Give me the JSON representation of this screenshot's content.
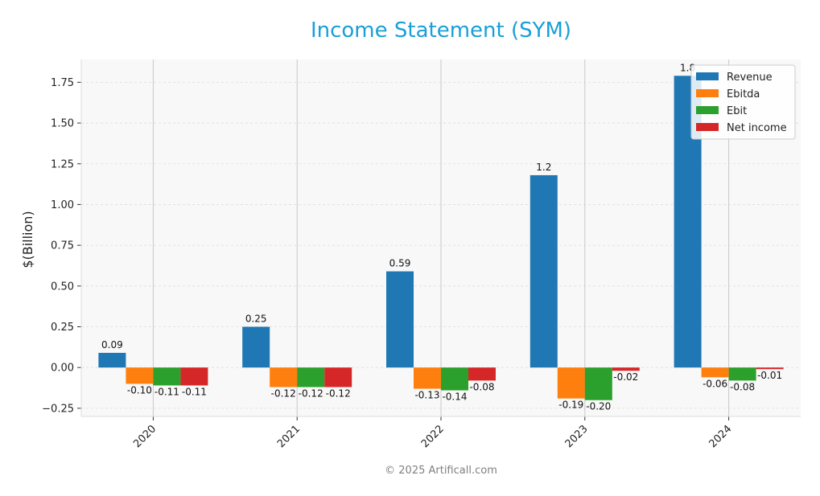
{
  "chart_data": {
    "type": "bar",
    "title": "Income Statement (SYM)",
    "ylabel": "$(Billion)",
    "xlabel": "",
    "categories": [
      "2020",
      "2021",
      "2022",
      "2023",
      "2024"
    ],
    "series": [
      {
        "name": "Revenue",
        "color": "#1f77b4",
        "values": [
          0.09,
          0.25,
          0.59,
          1.18,
          1.79
        ],
        "labels": [
          "0.09",
          "0.25",
          "0.59",
          "1.2",
          "1.8"
        ]
      },
      {
        "name": "Ebitda",
        "color": "#ff7f0e",
        "values": [
          -0.1,
          -0.12,
          -0.13,
          -0.19,
          -0.06
        ],
        "labels": [
          "-0.10",
          "-0.12",
          "-0.13",
          "-0.19",
          "-0.06"
        ]
      },
      {
        "name": "Ebit",
        "color": "#2ca02c",
        "values": [
          -0.11,
          -0.12,
          -0.14,
          -0.2,
          -0.08
        ],
        "labels": [
          "-0.11",
          "-0.12",
          "-0.14",
          "-0.20",
          "-0.08"
        ]
      },
      {
        "name": "Net income",
        "color": "#d62728",
        "values": [
          -0.11,
          -0.12,
          -0.08,
          -0.02,
          -0.01
        ],
        "labels": [
          "-0.11",
          "-0.12",
          "-0.08",
          "-0.02",
          "-0.01"
        ]
      }
    ],
    "yticks": [
      -0.25,
      0.0,
      0.25,
      0.5,
      0.75,
      1.0,
      1.25,
      1.5,
      1.75
    ],
    "ytick_labels": [
      "−0.25",
      "0.00",
      "0.25",
      "0.50",
      "0.75",
      "1.00",
      "1.25",
      "1.50",
      "1.75"
    ],
    "ylim": [
      -0.3,
      1.89
    ],
    "grid": true,
    "legend_position": "top-right",
    "title_color": "#1a9fd6"
  },
  "footer": {
    "text": "© 2025 Artificall.com"
  }
}
